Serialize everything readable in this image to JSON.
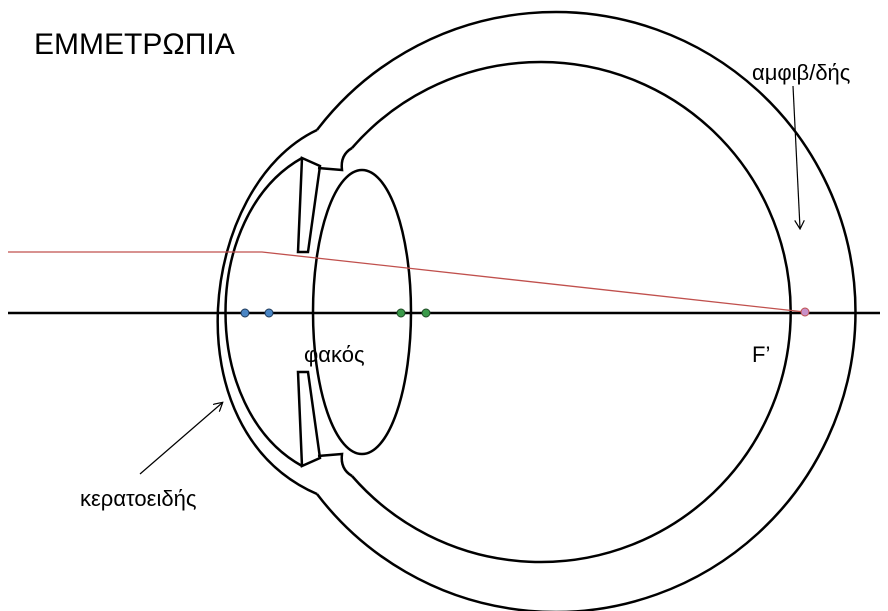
{
  "title": "ΕΜΜΕΤΡΩΠΙΑ",
  "labels": {
    "retina": "αμφιβ/δής",
    "lens": "φακός",
    "focus": "F’",
    "cornea": "κερατοειδής"
  }
}
